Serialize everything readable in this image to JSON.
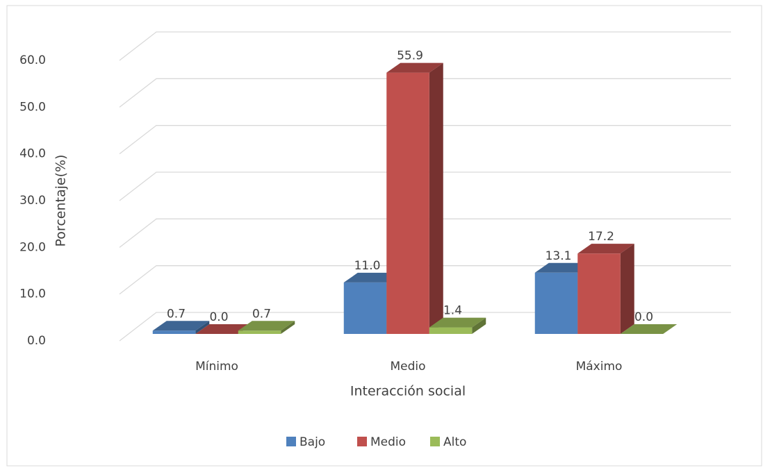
{
  "chart_data": {
    "type": "bar3d",
    "categories": [
      "Mínimo",
      "Medio",
      "Máximo"
    ],
    "series": [
      {
        "name": "Bajo",
        "color": "#4f81bd",
        "values": [
          0.7,
          11,
          13.1
        ],
        "value_labels": [
          "0.7",
          "11.0",
          "13.1"
        ]
      },
      {
        "name": "Medio",
        "color": "#c0504d",
        "values": [
          0,
          55.9,
          17.2
        ],
        "value_labels": [
          "0.0",
          "55.9",
          "17.2"
        ]
      },
      {
        "name": "Alto",
        "color": "#9bbb59",
        "values": [
          0.7,
          1.4,
          0
        ],
        "value_labels": [
          "0.7",
          "1.4",
          "0.0"
        ]
      }
    ],
    "ylabel": "Porcentaje(%)",
    "xlabel": "Interacción social",
    "ylim": [
      0,
      60
    ],
    "yticks": [
      {
        "value": 0,
        "label": "0.0"
      },
      {
        "value": 10,
        "label": "10.0"
      },
      {
        "value": 20,
        "label": "20.0"
      },
      {
        "value": 30,
        "label": "30.0"
      },
      {
        "value": 40,
        "label": "40.0"
      },
      {
        "value": 50,
        "label": "50.0"
      },
      {
        "value": 60,
        "label": "60.0"
      }
    ],
    "grid": true,
    "legend": "bottom"
  }
}
